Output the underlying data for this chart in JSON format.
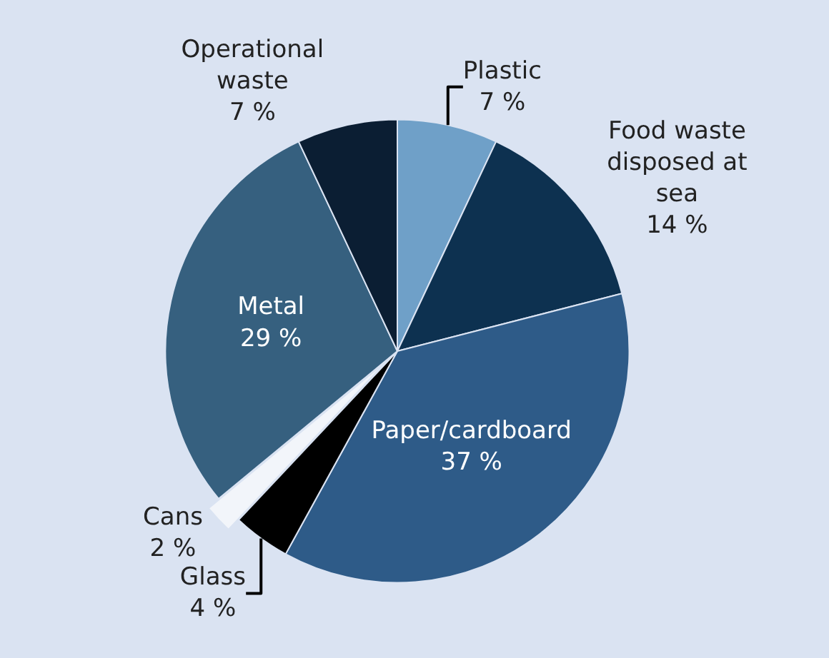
{
  "chart_data": {
    "type": "pie",
    "categories": [
      "Plastic",
      "Food waste disposed at sea",
      "Paper/cardboard",
      "Glass",
      "Cans",
      "Metal",
      "Operational waste"
    ],
    "values": [
      7,
      14,
      37,
      4,
      2,
      29,
      7
    ],
    "value_labels": [
      "7 %",
      "14 %",
      "37 %",
      "4 %",
      "2 %",
      "29 %",
      "7 %"
    ],
    "colors": [
      "#6fa0c8",
      "#0d3150",
      "#2e5b88",
      "#000000",
      "#f2f5fa",
      "#36607f",
      "#0b1e33"
    ],
    "legend": false
  }
}
